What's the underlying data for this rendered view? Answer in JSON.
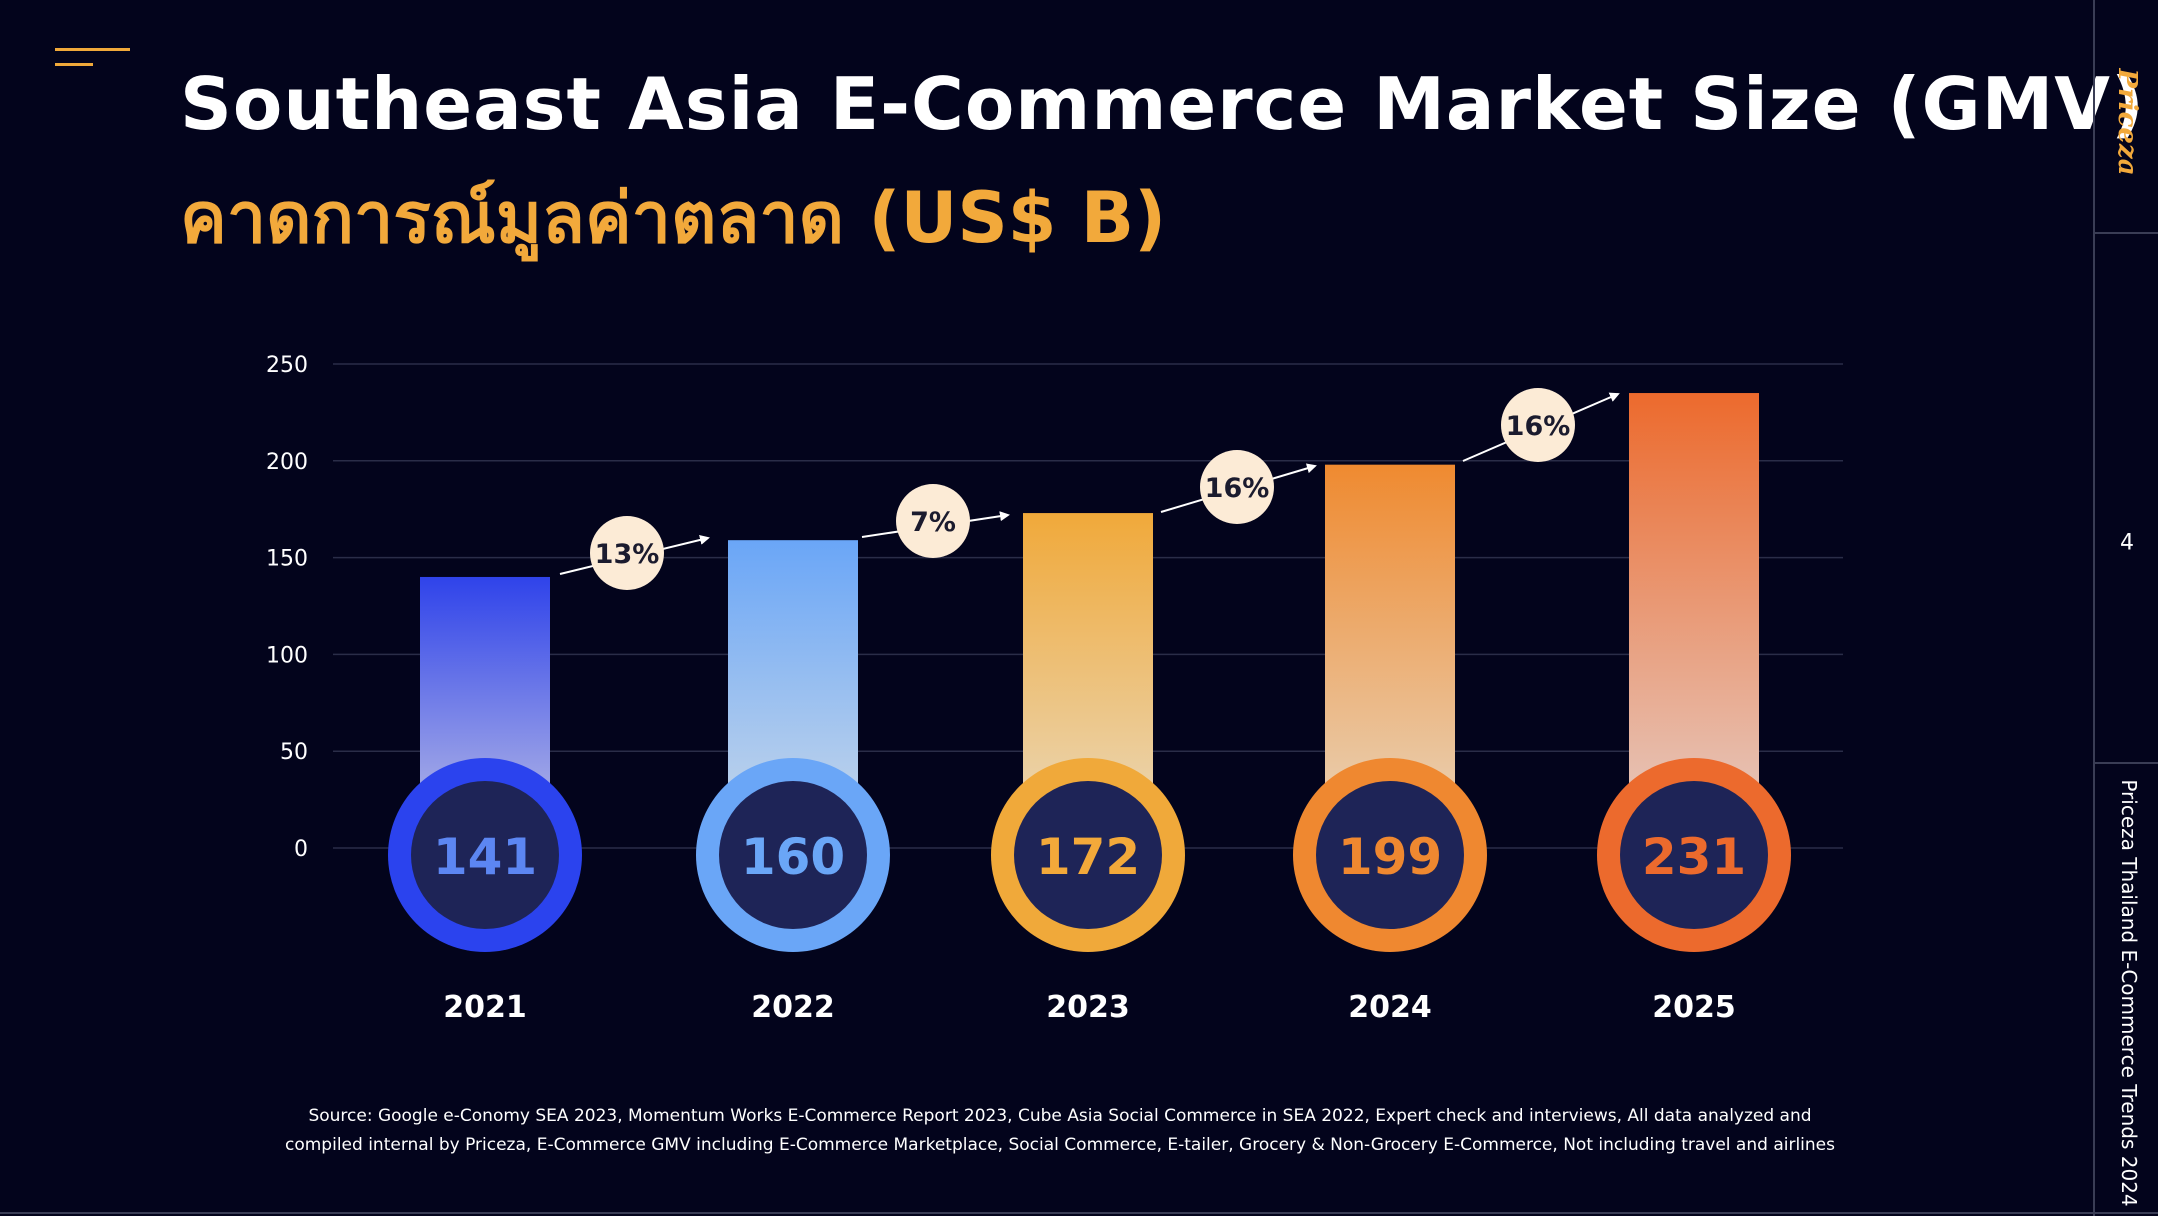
{
  "slide": {
    "title": "Southeast Asia E-Commerce Market Size (GMV)",
    "subtitle": "คาดการณ์มูลค่าตลาด (US$ B)",
    "page_number": "4",
    "brand_logo": "Priceza",
    "side_caption": "Priceza Thailand E-Commerce Trends 2024",
    "source_line1": "Source: Google e-Conomy SEA 2023, Momentum Works E-Commerce Report 2023, Cube Asia Social Commerce in SEA 2022, Expert check and interviews, All data analyzed and",
    "source_line2": "compiled internal by Priceza, E-Commerce GMV including E-Commerce Marketplace, Social Commerce, E-tailer, Grocery & Non-Grocery E-Commerce, Not including travel and airlines"
  },
  "colors": {
    "background": "#03041c",
    "accent": "#f2a93b",
    "circle_inner": "#1e2457"
  },
  "chart_data": {
    "type": "bar",
    "categories": [
      "2021",
      "2022",
      "2023",
      "2024",
      "2025"
    ],
    "values": [
      141,
      160,
      172,
      199,
      231
    ],
    "bar_heights": [
      140,
      159,
      173,
      198,
      235
    ],
    "value_labels": [
      "141",
      "160",
      "172",
      "199",
      "231"
    ],
    "ylim": [
      0,
      250
    ],
    "yticks": [
      "0",
      "50",
      "100",
      "150",
      "200",
      "250"
    ],
    "grid": true,
    "growth_labels": [
      "13%",
      "7%",
      "16%",
      "16%"
    ],
    "bar_colors": [
      {
        "top": "#2f43ea",
        "bottom": "#b4b8e6",
        "ring": "#2b43ee",
        "text": "#5c86f2"
      },
      {
        "top": "#6aa6f7",
        "bottom": "#c4d6ea",
        "ring": "#6aa6f7",
        "text": "#6aa6f7"
      },
      {
        "top": "#f0a93a",
        "bottom": "#ead7b6",
        "ring": "#f0a93a",
        "text": "#f3a93a"
      },
      {
        "top": "#ef8a30",
        "bottom": "#e9d2b6",
        "ring": "#ef8830",
        "text": "#ef8830"
      },
      {
        "top": "#ec6a2d",
        "bottom": "#e6c9bf",
        "ring": "#ec6a2d",
        "text": "#ec6a2d"
      }
    ]
  }
}
